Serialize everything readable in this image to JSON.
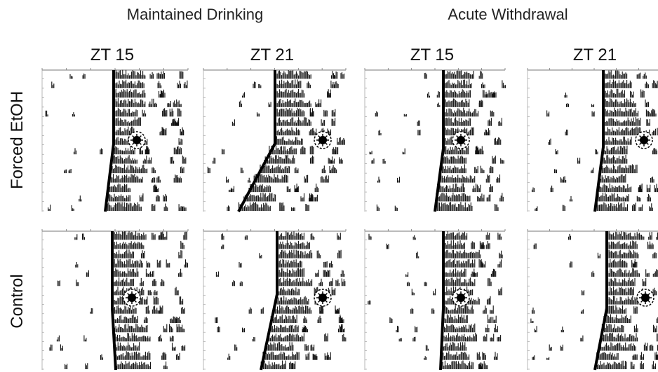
{
  "headers": [
    "Maintained Drinking",
    "Acute Withdrawal"
  ],
  "columns": [
    "ZT 15",
    "ZT 21",
    "ZT 15",
    "ZT 21"
  ],
  "rows": [
    "Forced EtOH",
    "Control"
  ]
}
